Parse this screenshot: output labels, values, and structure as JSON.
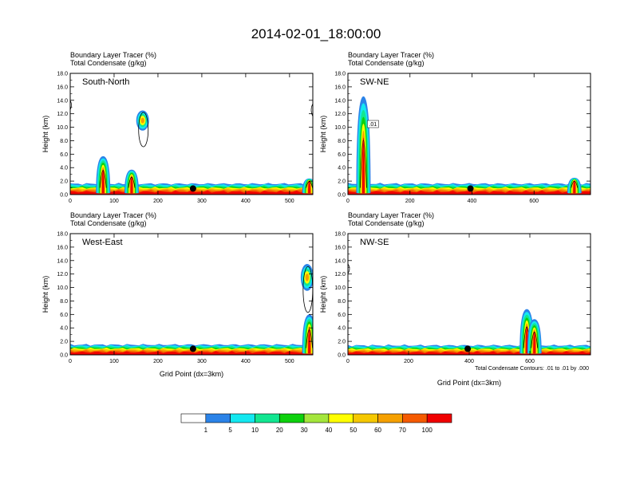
{
  "figure": {
    "title": "2014-02-01_18:00:00",
    "note": "Total Condensate Contours: .01 to .01 by .000"
  },
  "colorbar": {
    "colors": [
      "#ffffff",
      "#2b83e8",
      "#13e8f0",
      "#12e691",
      "#0dd10d",
      "#a4e63c",
      "#ffff00",
      "#f5c800",
      "#f5a000",
      "#f55a00",
      "#f00000"
    ],
    "labels": [
      "1",
      "5",
      "10",
      "20",
      "30",
      "40",
      "50",
      "60",
      "70",
      "100"
    ]
  },
  "chart_data": [
    {
      "type": "heatmap",
      "panel_label": "South-North",
      "header_lines": [
        "Boundary Layer Tracer   (%)",
        "Total Condensate   (g/kg)"
      ],
      "xlabel": "",
      "ylabel": "Height (km)",
      "xlim": [
        0,
        553
      ],
      "ylim": [
        0,
        18
      ],
      "xticks": [
        0,
        100,
        200,
        300,
        400,
        500
      ],
      "yticks": [
        "0.0",
        "2.0",
        "4.0",
        "6.0",
        "8.0",
        "10.0",
        "12.0",
        "14.0",
        "16.0",
        "18.0"
      ],
      "marker_x": 280,
      "contour_labels": [],
      "boundary_layer_top_km": 1.6,
      "plumes": [
        {
          "x": 75,
          "top_km": 5.7
        },
        {
          "x": 140,
          "top_km": 3.7
        },
        {
          "x": 545,
          "top_km": 2.4
        }
      ],
      "elevated_clouds": [
        {
          "x": 165,
          "bottom_km": 9.5,
          "top_km": 12.5
        }
      ]
    },
    {
      "type": "heatmap",
      "panel_label": "SW-NE",
      "header_lines": [
        "Boundary Layer Tracer   (%)",
        "Total Condensate   (g/kg)"
      ],
      "xlabel": "",
      "ylabel": "Height (km)",
      "xlim": [
        0,
        782
      ],
      "ylim": [
        0,
        18
      ],
      "xticks": [
        0,
        200,
        400,
        600
      ],
      "yticks": [
        "0.0",
        "2.0",
        "4.0",
        "6.0",
        "8.0",
        "10.0",
        "12.0",
        "14.0",
        "16.0",
        "18.0"
      ],
      "marker_x": 395,
      "contour_labels": [
        ".01"
      ],
      "boundary_layer_top_km": 1.6,
      "plumes": [
        {
          "x": 50,
          "top_km": 14.6
        },
        {
          "x": 730,
          "top_km": 2.5
        }
      ],
      "elevated_clouds": []
    },
    {
      "type": "heatmap",
      "panel_label": "West-East",
      "header_lines": [
        "Boundary Layer Tracer   (%)",
        "Total Condensate   (g/kg)"
      ],
      "xlabel": "Grid Point (dx=3km)",
      "ylabel": "Height (km)",
      "xlim": [
        0,
        553
      ],
      "ylim": [
        0,
        18
      ],
      "xticks": [
        0,
        100,
        200,
        300,
        400,
        500
      ],
      "yticks": [
        "0.0",
        "2.0",
        "4.0",
        "6.0",
        "8.0",
        "10.0",
        "12.0",
        "14.0",
        "16.0",
        "18.0"
      ],
      "marker_x": 280,
      "contour_labels": [],
      "boundary_layer_top_km": 1.5,
      "plumes": [
        {
          "x": 545,
          "top_km": 6.0
        }
      ],
      "elevated_clouds": [
        {
          "x": 540,
          "bottom_km": 9.5,
          "top_km": 13.5
        }
      ]
    },
    {
      "type": "heatmap",
      "panel_label": "NW-SE",
      "header_lines": [
        "Boundary Layer Tracer   (%)",
        "Total Condensate   (g/kg)"
      ],
      "xlabel": "Grid Point (dx=3km)",
      "ylabel": "Height (km)",
      "xlim": [
        0,
        800
      ],
      "ylim": [
        0,
        18
      ],
      "xticks": [
        0,
        200,
        400,
        600
      ],
      "yticks": [
        "0.0",
        "2.0",
        "4.0",
        "6.0",
        "8.0",
        "10.0",
        "12.0",
        "14.0",
        "16.0",
        "18.0"
      ],
      "marker_x": 395,
      "contour_labels": [],
      "boundary_layer_top_km": 1.4,
      "plumes": [
        {
          "x": 590,
          "top_km": 6.8
        },
        {
          "x": 615,
          "top_km": 5.3
        }
      ],
      "elevated_clouds": []
    }
  ]
}
